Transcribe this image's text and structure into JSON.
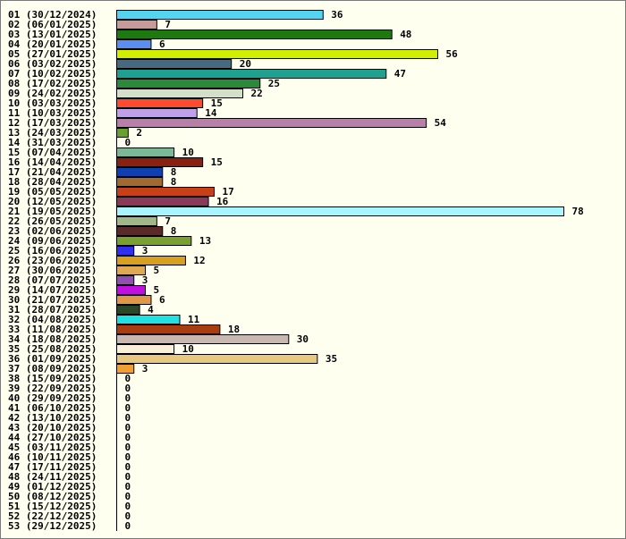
{
  "chart_data": {
    "type": "bar",
    "orientation": "horizontal",
    "title": "",
    "xlabel": "",
    "ylabel": "",
    "grid": false,
    "xlim": [
      0,
      78
    ],
    "categories": [
      "01 (30/12/2024)",
      "02 (06/01/2025)",
      "03 (13/01/2025)",
      "04 (20/01/2025)",
      "05 (27/01/2025)",
      "06 (03/02/2025)",
      "07 (10/02/2025)",
      "08 (17/02/2025)",
      "09 (24/02/2025)",
      "10 (03/03/2025)",
      "11 (10/03/2025)",
      "12 (17/03/2025)",
      "13 (24/03/2025)",
      "14 (31/03/2025)",
      "15 (07/04/2025)",
      "16 (14/04/2025)",
      "17 (21/04/2025)",
      "18 (28/04/2025)",
      "19 (05/05/2025)",
      "20 (12/05/2025)",
      "21 (19/05/2025)",
      "22 (26/05/2025)",
      "23 (02/06/2025)",
      "24 (09/06/2025)",
      "25 (16/06/2025)",
      "26 (23/06/2025)",
      "27 (30/06/2025)",
      "28 (07/07/2025)",
      "29 (14/07/2025)",
      "30 (21/07/2025)",
      "31 (28/07/2025)",
      "32 (04/08/2025)",
      "33 (11/08/2025)",
      "34 (18/08/2025)",
      "35 (25/08/2025)",
      "36 (01/09/2025)",
      "37 (08/09/2025)",
      "38 (15/09/2025)",
      "39 (22/09/2025)",
      "40 (29/09/2025)",
      "41 (06/10/2025)",
      "42 (13/10/2025)",
      "43 (20/10/2025)",
      "44 (27/10/2025)",
      "45 (03/11/2025)",
      "46 (10/11/2025)",
      "47 (17/11/2025)",
      "48 (24/11/2025)",
      "49 (01/12/2025)",
      "50 (08/12/2025)",
      "51 (15/12/2025)",
      "52 (22/12/2025)",
      "53 (29/12/2025)"
    ],
    "values": [
      36,
      7,
      48,
      6,
      56,
      20,
      47,
      25,
      22,
      15,
      14,
      54,
      2,
      0,
      10,
      15,
      8,
      8,
      17,
      16,
      78,
      7,
      8,
      13,
      3,
      12,
      5,
      3,
      5,
      6,
      4,
      11,
      18,
      30,
      10,
      35,
      3,
      0,
      0,
      0,
      0,
      0,
      0,
      0,
      0,
      0,
      0,
      0,
      0,
      0,
      0,
      0,
      0
    ],
    "colors": [
      "#55d4f0",
      "#c89a9a",
      "#1e7a10",
      "#5a8ef0",
      "#d2ef00",
      "#486a80",
      "#1fa090",
      "#2a8a3a",
      "#d3dfc8",
      "#ff4a30",
      "#c0a0e8",
      "#b880a8",
      "#6aa030",
      "#ffffff",
      "#7ab898",
      "#8a2010",
      "#1040b0",
      "#a06a30",
      "#c84018",
      "#8a3a58",
      "#a8f4ff",
      "#a0b888",
      "#5a2a28",
      "#7aa030",
      "#3030f0",
      "#d8a020",
      "#e0a850",
      "#9050b0",
      "#c010e0",
      "#e09848",
      "#2a4828",
      "#20e0e0",
      "#a83e10",
      "#c8b8b0",
      "#f8f0d8",
      "#e8c880",
      "#f0a030",
      "#ffffff",
      "#ffffff",
      "#ffffff",
      "#ffffff",
      "#ffffff",
      "#ffffff",
      "#ffffff",
      "#ffffff",
      "#ffffff",
      "#ffffff",
      "#ffffff",
      "#ffffff",
      "#ffffff",
      "#ffffff",
      "#ffffff",
      "#ffffff"
    ]
  }
}
